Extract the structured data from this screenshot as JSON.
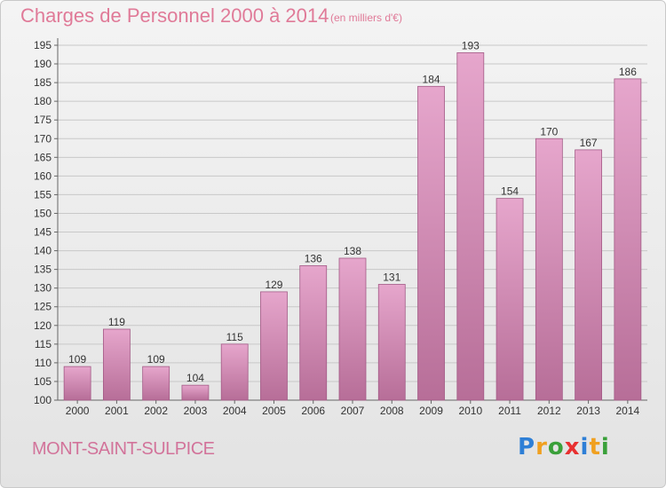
{
  "header": {
    "title": "Charges de Personnel 2000 à 2014",
    "subtitle": "(en milliers d'€)"
  },
  "footer": {
    "commune": "MONT-SAINT-SULPICE",
    "logo_letters": [
      {
        "char": "P",
        "color": "#2e7fd6"
      },
      {
        "char": "r",
        "color": "#f0a020"
      },
      {
        "char": "o",
        "color": "#3aa03a"
      },
      {
        "char": "x",
        "color": "#e83030"
      },
      {
        "char": "i",
        "color": "#2e7fd6"
      },
      {
        "char": "t",
        "color": "#f0a020"
      },
      {
        "char": "i",
        "color": "#3aa03a"
      }
    ]
  },
  "colors": {
    "bar_top": "#e6a6cc",
    "bar_bottom": "#b76e98",
    "bar_edge": "#a35a86",
    "title": "#e07a98",
    "axis_text": "#333333",
    "gridline": "#c8c8c8"
  },
  "chart_data": {
    "type": "bar",
    "title": "Charges de Personnel 2000 à 2014",
    "subtitle": "(en milliers d'€)",
    "categories": [
      "2000",
      "2001",
      "2002",
      "2003",
      "2004",
      "2005",
      "2006",
      "2007",
      "2008",
      "2009",
      "2010",
      "2011",
      "2012",
      "2013",
      "2014"
    ],
    "values": [
      109,
      119,
      109,
      104,
      115,
      129,
      136,
      138,
      131,
      184,
      193,
      154,
      170,
      167,
      186
    ],
    "ylim": [
      100,
      195
    ],
    "yticks": [
      100,
      105,
      110,
      115,
      120,
      125,
      130,
      135,
      140,
      145,
      150,
      155,
      160,
      165,
      170,
      175,
      180,
      185,
      190,
      195
    ],
    "grid": true,
    "data_labels": true
  }
}
